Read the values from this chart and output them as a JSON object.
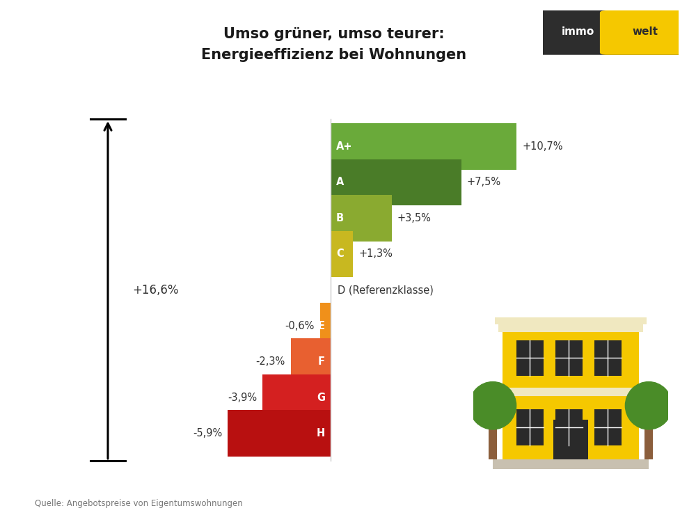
{
  "title_line1": "Umso grüner, umso teurer:",
  "title_line2": "Energieeffizienz bei Wohnungen",
  "categories": [
    "A+",
    "A",
    "B",
    "C",
    "D (Referenzklasse)",
    "E",
    "F",
    "G",
    "H"
  ],
  "values": [
    10.7,
    7.5,
    3.5,
    1.3,
    0.0,
    -0.6,
    -2.3,
    -3.9,
    -5.9
  ],
  "labels": [
    "+10,7%",
    "+7,5%",
    "+3,5%",
    "+1,3%",
    "",
    "-0,6%",
    "-2,3%",
    "-3,9%",
    "-5,9%"
  ],
  "colors": [
    "#6aaa3a",
    "#4a7c28",
    "#8aaa30",
    "#c8b820",
    "#ffffff",
    "#f0901a",
    "#e86030",
    "#d42020",
    "#b81010"
  ],
  "bar_height": 0.62,
  "background_color": "#ffffff",
  "source_text": "Quelle: Angebotspreise von Eigentumswohnungen",
  "arrow_label": "+16,6%",
  "figsize": [
    10,
    7.5
  ],
  "dpi": 100
}
